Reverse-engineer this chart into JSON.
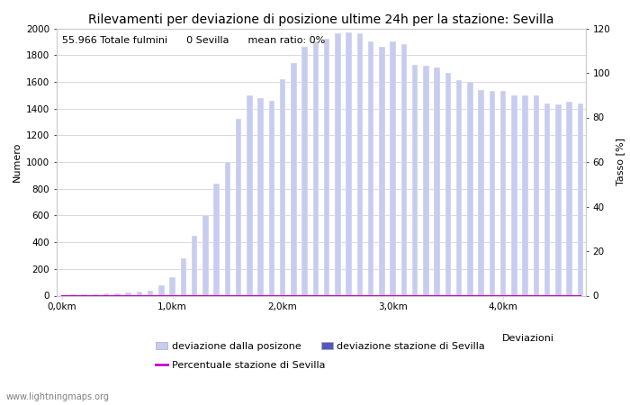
{
  "title": "Rilevamenti per deviazione di posizione ultime 24h per la stazione: Sevilla",
  "xlabel": "Deviazioni",
  "ylabel_left": "Numero",
  "ylabel_right": "Tasso [%]",
  "annotation": "55.966 Totale fulmini      0 Sevilla      mean ratio: 0%",
  "watermark": "www.lightningmaps.org",
  "bar_values": [
    5,
    8,
    10,
    12,
    15,
    18,
    22,
    28,
    40,
    80,
    140,
    280,
    450,
    600,
    840,
    1000,
    1320,
    1500,
    1480,
    1460,
    1620,
    1740,
    1860,
    1900,
    1920,
    1960,
    1970,
    1960,
    1900,
    1860,
    1900,
    1880,
    1730,
    1720,
    1710,
    1670,
    1610,
    1600,
    1540,
    1530,
    1530,
    1500,
    1500,
    1500,
    1440,
    1430,
    1450,
    1440
  ],
  "station_values": [
    0,
    0,
    0,
    0,
    0,
    0,
    0,
    0,
    0,
    0,
    0,
    0,
    0,
    0,
    0,
    0,
    0,
    0,
    0,
    0,
    0,
    0,
    0,
    0,
    0,
    0,
    0,
    0,
    0,
    0,
    0,
    0,
    0,
    0,
    0,
    0,
    0,
    0,
    0,
    0,
    0,
    0,
    0,
    0,
    0,
    0,
    0,
    0
  ],
  "percentage_values": [
    0,
    0,
    0,
    0,
    0,
    0,
    0,
    0,
    0,
    0,
    0,
    0,
    0,
    0,
    0,
    0,
    0,
    0,
    0,
    0,
    0,
    0,
    0,
    0,
    0,
    0,
    0,
    0,
    0,
    0,
    0,
    0,
    0,
    0,
    0,
    0,
    0,
    0,
    0,
    0,
    0,
    0,
    0,
    0,
    0,
    0,
    0,
    0
  ],
  "n_bars": 48,
  "ylim_left": [
    0,
    2000
  ],
  "ylim_right": [
    0,
    120
  ],
  "yticks_left": [
    0,
    200,
    400,
    600,
    800,
    1000,
    1200,
    1400,
    1600,
    1800,
    2000
  ],
  "yticks_right": [
    0,
    20,
    40,
    60,
    80,
    100,
    120
  ],
  "bar_color_light": "#c8ccee",
  "bar_color_dark": "#5555bb",
  "line_color": "#cc00cc",
  "bg_color": "#ffffff",
  "grid_color": "#cccccc",
  "title_fontsize": 10,
  "label_fontsize": 8,
  "tick_fontsize": 7.5,
  "legend_fontsize": 8,
  "annotation_fontsize": 8
}
